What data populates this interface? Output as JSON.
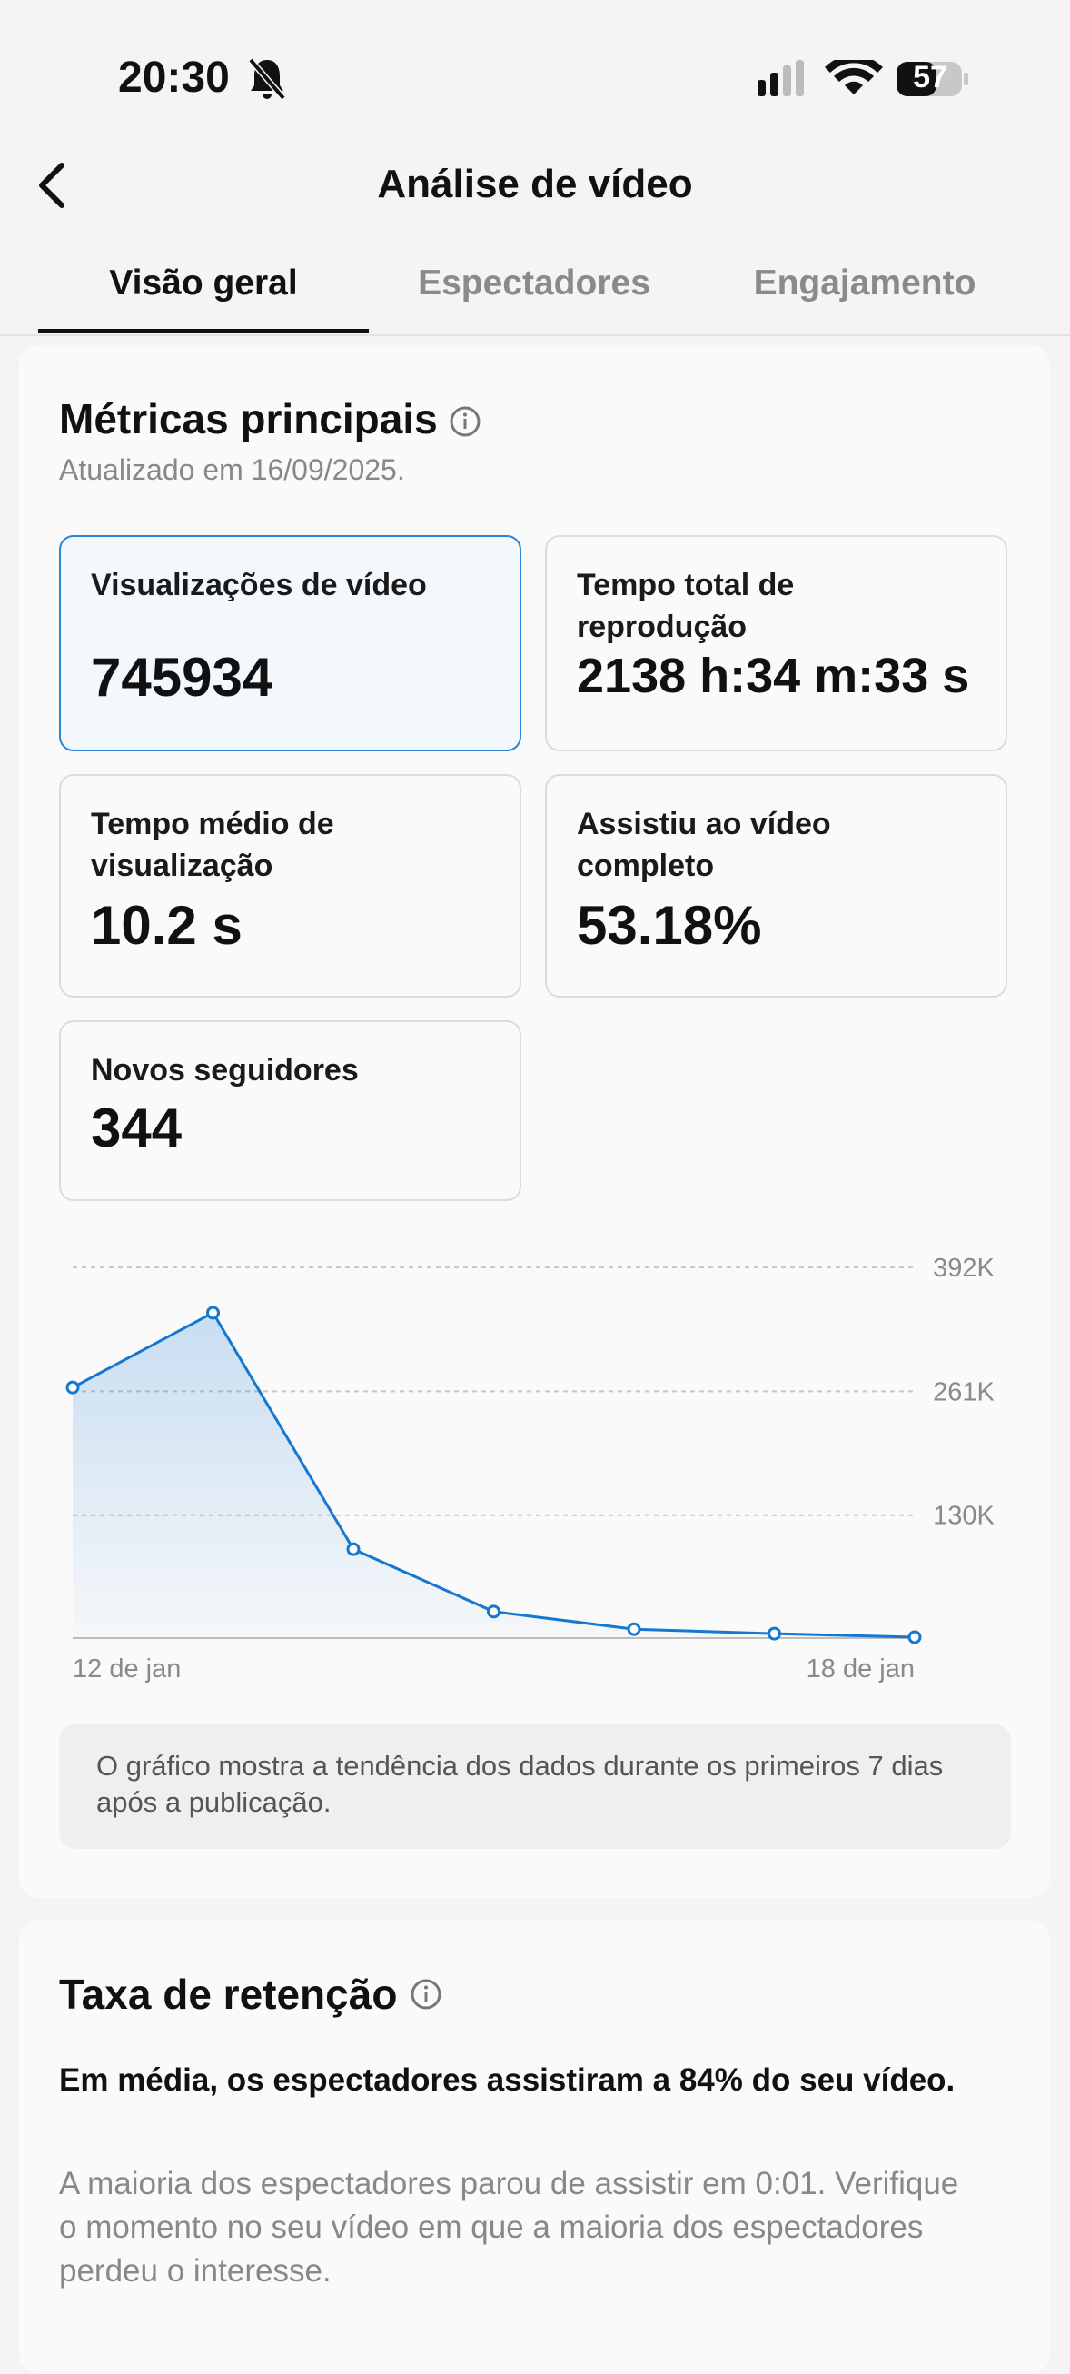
{
  "status": {
    "time": "20:30",
    "battery": "57"
  },
  "header": {
    "title": "Análise de vídeo"
  },
  "tabs": [
    "Visão geral",
    "Espectadores",
    "Engajamento"
  ],
  "metrics": {
    "title": "Métricas principais",
    "updated": "Atualizado em 16/09/2025.",
    "items": [
      {
        "label": "Visualizações de vídeo",
        "value": "745934"
      },
      {
        "label": "Tempo total de reprodução",
        "value": "2138 h:34 m:33 s"
      },
      {
        "label": "Tempo médio de visualização",
        "value": "10.2 s"
      },
      {
        "label": "Assistiu ao vídeo completo",
        "value": "53.18%"
      },
      {
        "label": "Novos seguidores",
        "value": "344"
      }
    ]
  },
  "chart_data": {
    "type": "line",
    "categories": [
      "12 de jan",
      null,
      null,
      null,
      null,
      null,
      "18 de jan"
    ],
    "values": [
      265000,
      344000,
      94000,
      28000,
      9400,
      4700,
      1000
    ],
    "color": "#1677d2",
    "ylim": [
      0,
      392000
    ],
    "yticks": [
      {
        "value": 130000,
        "label": "130K"
      },
      {
        "value": 261000,
        "label": "261K"
      },
      {
        "value": 392000,
        "label": "392K"
      }
    ],
    "grid": true
  },
  "note": "O gráfico mostra a tendência dos dados durante os primeiros 7 dias após a publicação.",
  "retention": {
    "title": "Taxa de retenção",
    "summary": "Em média, os espectadores assistiram a 84% do seu vídeo.",
    "detail": "A maioria dos espectadores parou de assistir em 0:01. Verifique o momento no seu vídeo em que a maioria dos espectadores perdeu o interesse."
  }
}
